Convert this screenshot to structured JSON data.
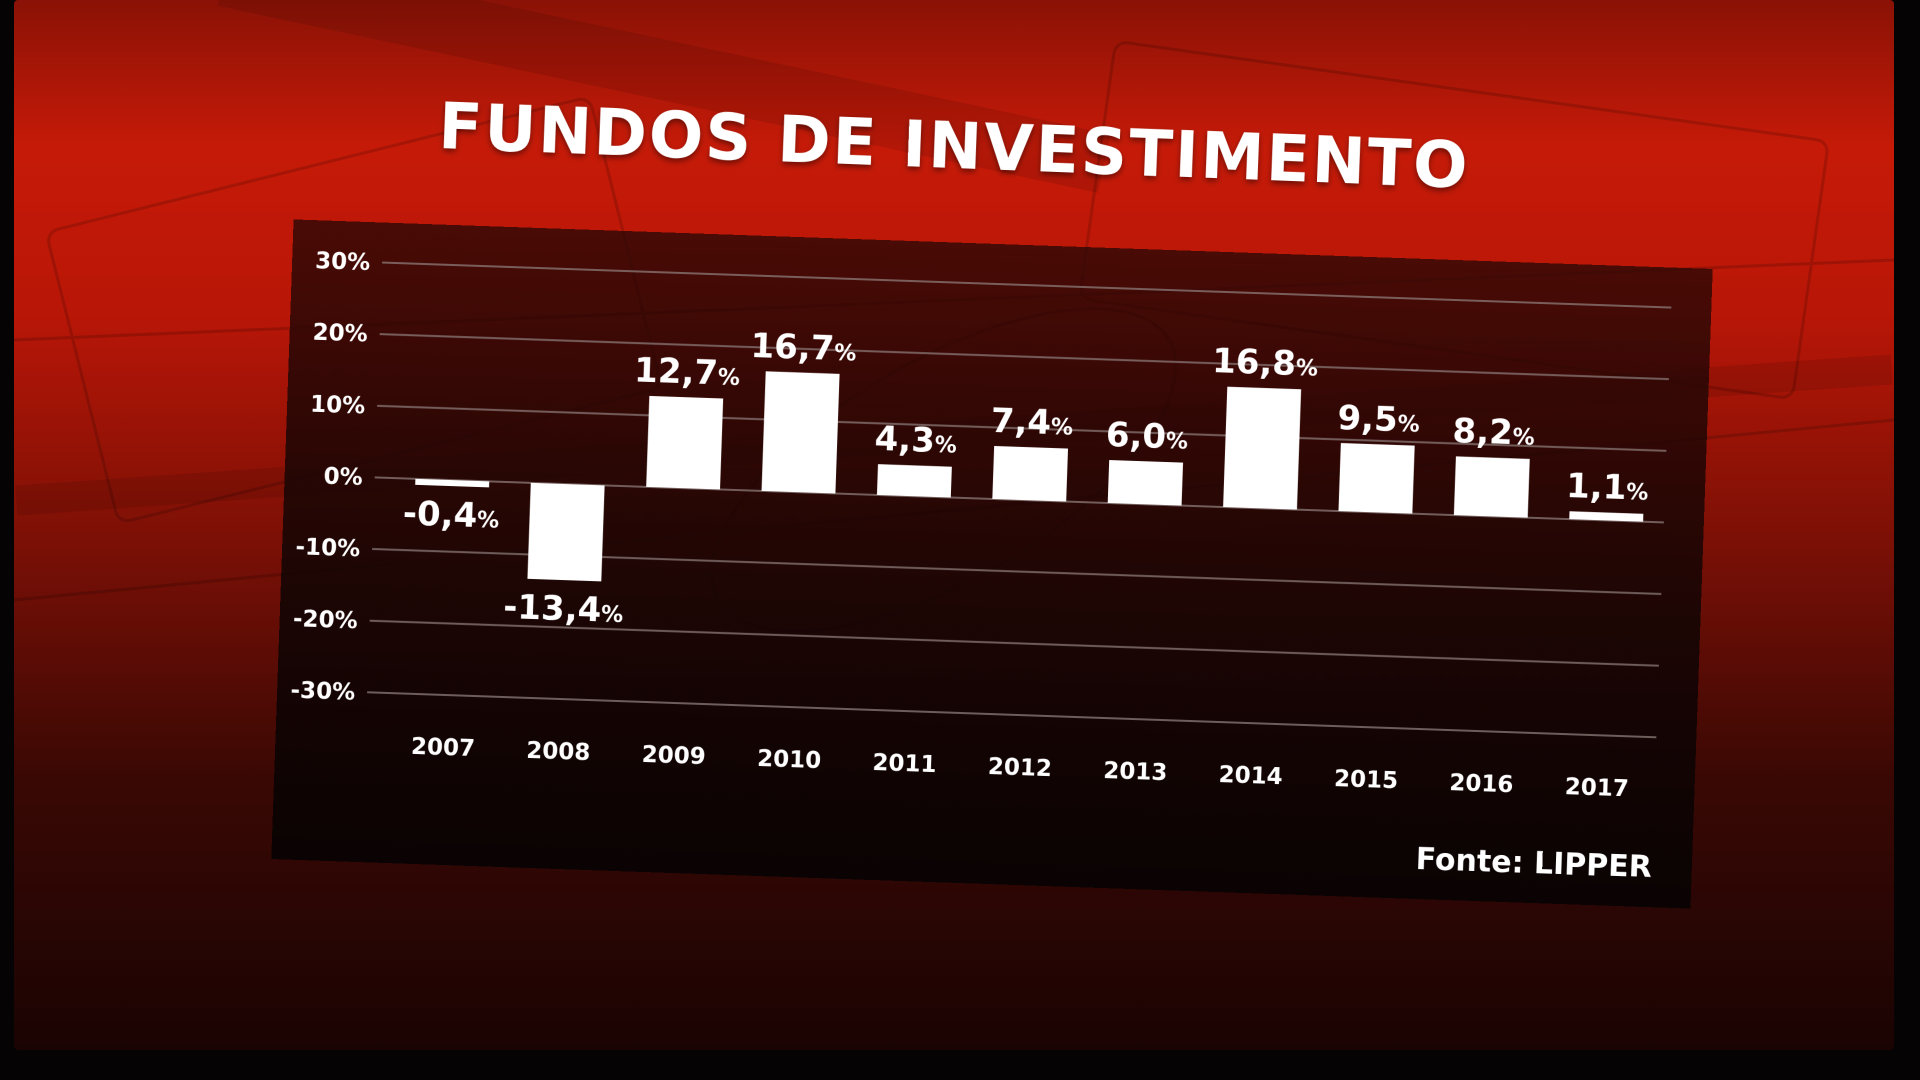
{
  "chart_data": {
    "type": "bar",
    "title": "FUNDOS DE INVESTIMENTO",
    "categories": [
      "2007",
      "2008",
      "2009",
      "2010",
      "2011",
      "2012",
      "2013",
      "2014",
      "2015",
      "2016",
      "2017"
    ],
    "values": [
      -0.4,
      -13.4,
      12.7,
      16.7,
      4.3,
      7.4,
      6.0,
      16.8,
      9.5,
      8.2,
      1.1
    ],
    "value_labels": [
      "-0,4",
      "-13,4",
      "12,7",
      "16,7",
      "4,3",
      "7,4",
      "6,0",
      "16,8",
      "9,5",
      "8,2",
      "1,1"
    ],
    "value_suffix": "%",
    "yticks": [
      30,
      20,
      10,
      0,
      -10,
      -20,
      -30
    ],
    "ytick_labels": [
      "30%",
      "20%",
      "10%",
      "0%",
      "-10%",
      "-20%",
      "-30%"
    ],
    "ylim": [
      -30,
      30
    ],
    "xlabel": "",
    "ylabel": "",
    "grid": true,
    "bar_color": "#ffffff",
    "source": "Fonte: LIPPER"
  },
  "colors": {
    "background_red": "#c61a08",
    "panel": "#140403",
    "text": "#ffffff",
    "grid": "#8a7a78"
  }
}
